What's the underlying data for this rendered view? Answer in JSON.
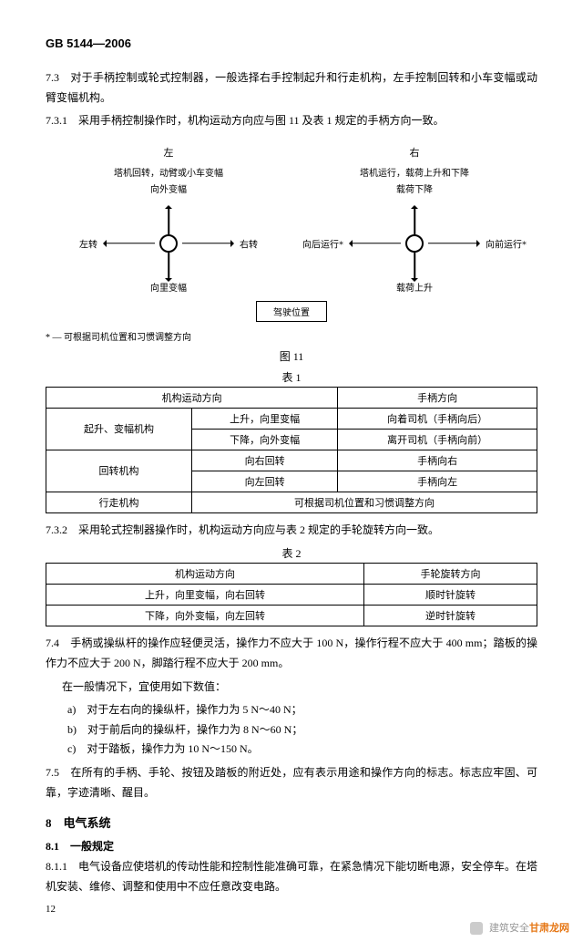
{
  "standard_code": "GB 5144—2006",
  "p73": "7.3　对于手柄控制或轮式控制器，一般选择右手控制起升和行走机构，左手控制回转和小车变幅或动臂变幅机构。",
  "p731": "7.3.1　采用手柄控制操作时，机构运动方向应与图 11 及表 1 规定的手柄方向一致。",
  "diagram": {
    "left_title": "左",
    "left_sub1": "塔机回转，动臂或小车变幅",
    "left_sub2": "向外变幅",
    "left_lbl_left": "左转",
    "left_lbl_right": "右转",
    "left_lbl_bottom": "向里变幅",
    "right_title": "右",
    "right_sub1": "塔机运行，载荷上升和下降",
    "right_sub2": "载荷下降",
    "right_lbl_left": "向后运行*",
    "right_lbl_right": "向前运行*",
    "right_lbl_bottom": "载荷上升",
    "driver_box": "驾驶位置",
    "note": "* — 可根据司机位置和习惯调整方向"
  },
  "fig11": "图 11",
  "table1_caption": "表 1",
  "table1": {
    "h1": "机构运动方向",
    "h2": "手柄方向",
    "r1c1": "起升、变幅机构",
    "r1c2": "上升，向里变幅",
    "r1c3": "向着司机（手柄向后）",
    "r2c2": "下降，向外变幅",
    "r2c3": "离开司机（手柄向前）",
    "r3c1": "回转机构",
    "r3c2": "向右回转",
    "r3c3": "手柄向右",
    "r4c2": "向左回转",
    "r4c3": "手柄向左",
    "r5c1": "行走机构",
    "r5c2": "可根据司机位置和习惯调整方向"
  },
  "p732": "7.3.2　采用轮式控制器操作时，机构运动方向应与表 2 规定的手轮旋转方向一致。",
  "table2_caption": "表 2",
  "table2": {
    "h1": "机构运动方向",
    "h2": "手轮旋转方向",
    "r1c1": "上升，向里变幅，向右回转",
    "r1c2": "顺时针旋转",
    "r2c1": "下降，向外变幅，向左回转",
    "r2c2": "逆时针旋转"
  },
  "p74": "7.4　手柄或操纵杆的操作应轻便灵活，操作力不应大于 100 N，操作行程不应大于 400 mm；踏板的操作力不应大于 200 N，脚踏行程不应大于 200 mm。",
  "p74a": "在一般情况下，宜使用如下数值：",
  "p74b": "a)　对于左右向的操纵杆，操作力为 5 N～40 N；",
  "p74c": "b)　对于前后向的操纵杆，操作力为 8 N～60 N；",
  "p74d": "c)　对于踏板，操作力为 10 N～150 N。",
  "p75": "7.5　在所有的手柄、手轮、按钮及踏板的附近处，应有表示用途和操作方向的标志。标志应牢固、可靠，字迹清晰、醒目。",
  "s8": "8　电气系统",
  "s81": "8.1　一般规定",
  "p811": "8.1.1　电气设备应使塔机的传动性能和控制性能准确可靠，在紧急情况下能切断电源，安全停车。在塔机安装、维修、调整和使用中不应任意改变电路。",
  "page_number": "12",
  "watermark_prefix": "建筑安全",
  "watermark_brand": "甘肃龙网"
}
